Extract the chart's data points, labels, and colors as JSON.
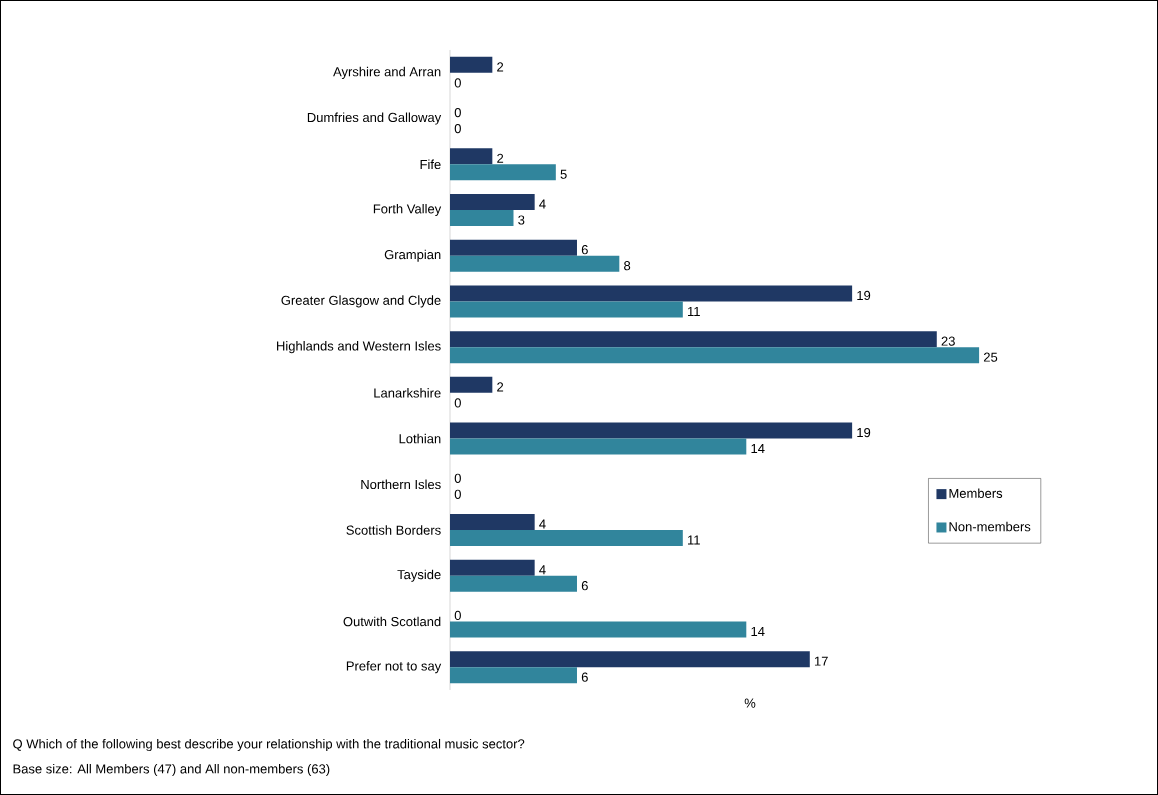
{
  "chart_data": {
    "type": "bar",
    "orientation": "horizontal",
    "xlabel": "%",
    "categories": [
      "Ayrshire and Arran",
      "Dumfries and Galloway",
      "Fife",
      "Forth Valley",
      "Grampian",
      "Greater Glasgow and Clyde",
      "Highlands and Western Isles",
      "Lanarkshire",
      "Lothian",
      "Northern Isles",
      "Scottish Borders",
      "Tayside",
      "Outwith Scotland",
      "Prefer not to say"
    ],
    "series": [
      {
        "name": "Members",
        "color": "#1f3864",
        "values": [
          2,
          0,
          2,
          4,
          6,
          19,
          23,
          2,
          19,
          0,
          4,
          4,
          0,
          17
        ]
      },
      {
        "name": "Non-members",
        "color": "#31859c",
        "values": [
          0,
          0,
          5,
          3,
          8,
          11,
          25,
          0,
          14,
          0,
          11,
          6,
          14,
          6
        ]
      }
    ],
    "data_labels": true,
    "legend": "right",
    "annotations": [
      "Q  Which of the following best describe your relationship with the traditional music sector?",
      "Base size: All Members (47) and All non-members (63)"
    ]
  }
}
